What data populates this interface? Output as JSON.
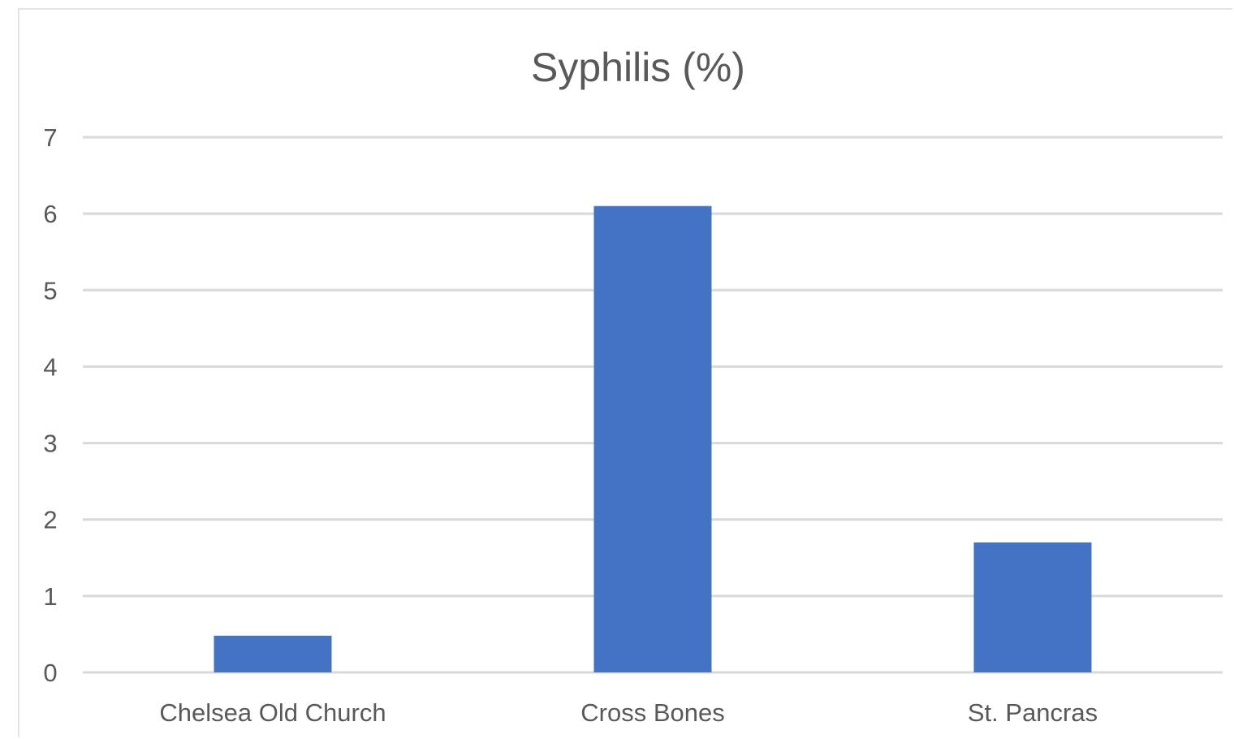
{
  "chart_data": {
    "type": "bar",
    "title": "Syphilis (%)",
    "categories": [
      "Chelsea Old Church",
      "Cross Bones",
      "St. Pancras"
    ],
    "values": [
      0.48,
      6.1,
      1.7
    ],
    "xlabel": "",
    "ylabel": "",
    "ylim": [
      0,
      7
    ],
    "yticks": [
      "0",
      "1",
      "2",
      "3",
      "4",
      "5",
      "6",
      "7"
    ],
    "grid": true,
    "legend": "none",
    "bar_color": "#4472c4"
  }
}
